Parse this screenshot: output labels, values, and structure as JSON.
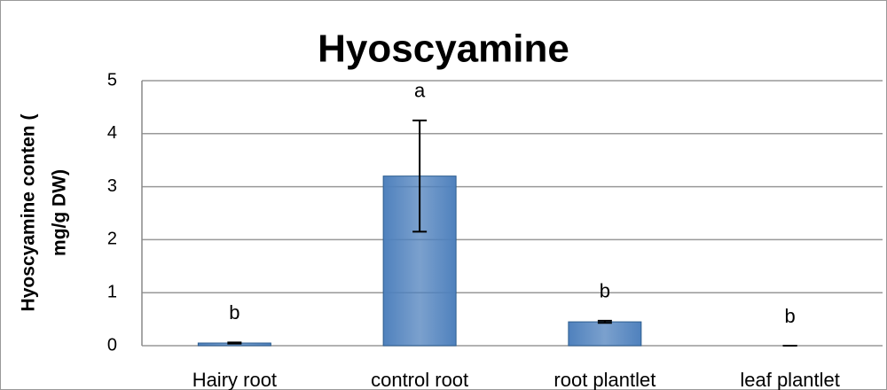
{
  "chart_data": {
    "type": "bar",
    "title": "Hyoscyamine",
    "y_label": [
      "Hyoscyamine conten (",
      "mg/g  DW)"
    ],
    "categories": [
      "Hairy root",
      "control root",
      "root plantlet",
      "leaf plantlet"
    ],
    "values": [
      0.05,
      3.2,
      0.45,
      0
    ],
    "errors": [
      0.01,
      1.05,
      0.02,
      0
    ],
    "annotations": [
      "b",
      "a",
      "b",
      "b"
    ],
    "color": "#4f81bd",
    "ylim": [
      0,
      5
    ],
    "yticks": [
      0,
      1,
      2,
      3,
      4,
      5
    ],
    "grid": true
  }
}
